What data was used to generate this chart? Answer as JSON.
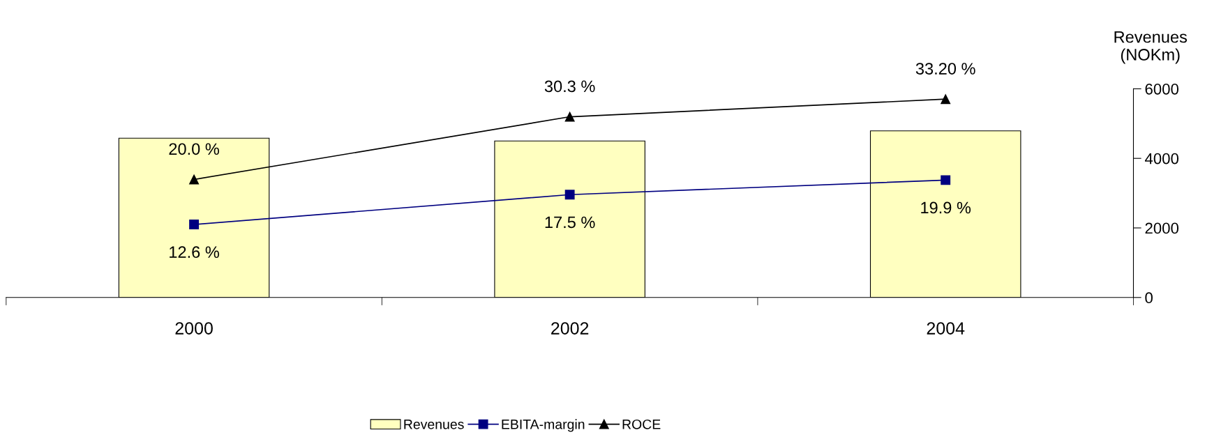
{
  "chart_data": {
    "type": "bar",
    "ylabel": "Revenues\n(NOKm)",
    "categories": [
      "2000",
      "2002",
      "2004"
    ],
    "series": [
      {
        "name": "Revenues",
        "color": "#ffffc0",
        "values": [
          4580,
          4500,
          4790
        ]
      },
      {
        "name": "EBITA-margin",
        "type": "line",
        "axis": "y2",
        "marker": "square",
        "color": "#000080",
        "values": [
          12.6,
          17.5,
          19.9
        ],
        "value_labels": [
          "12.6 %",
          "17.5 %",
          "19.9 %"
        ]
      },
      {
        "name": "ROCE",
        "type": "line",
        "axis": "y2",
        "marker": "triangle",
        "color": "#000000",
        "values": [
          20.0,
          30.3,
          33.2
        ],
        "value_labels": [
          "20.0 %",
          "30.3 %",
          "33.20 %"
        ]
      }
    ],
    "ylim": [
      0,
      6000
    ],
    "yticks": [
      0,
      2000,
      4000,
      6000
    ],
    "y2lim": [
      0.6,
      34.9
    ],
    "grid": false,
    "legend": "bottom"
  }
}
